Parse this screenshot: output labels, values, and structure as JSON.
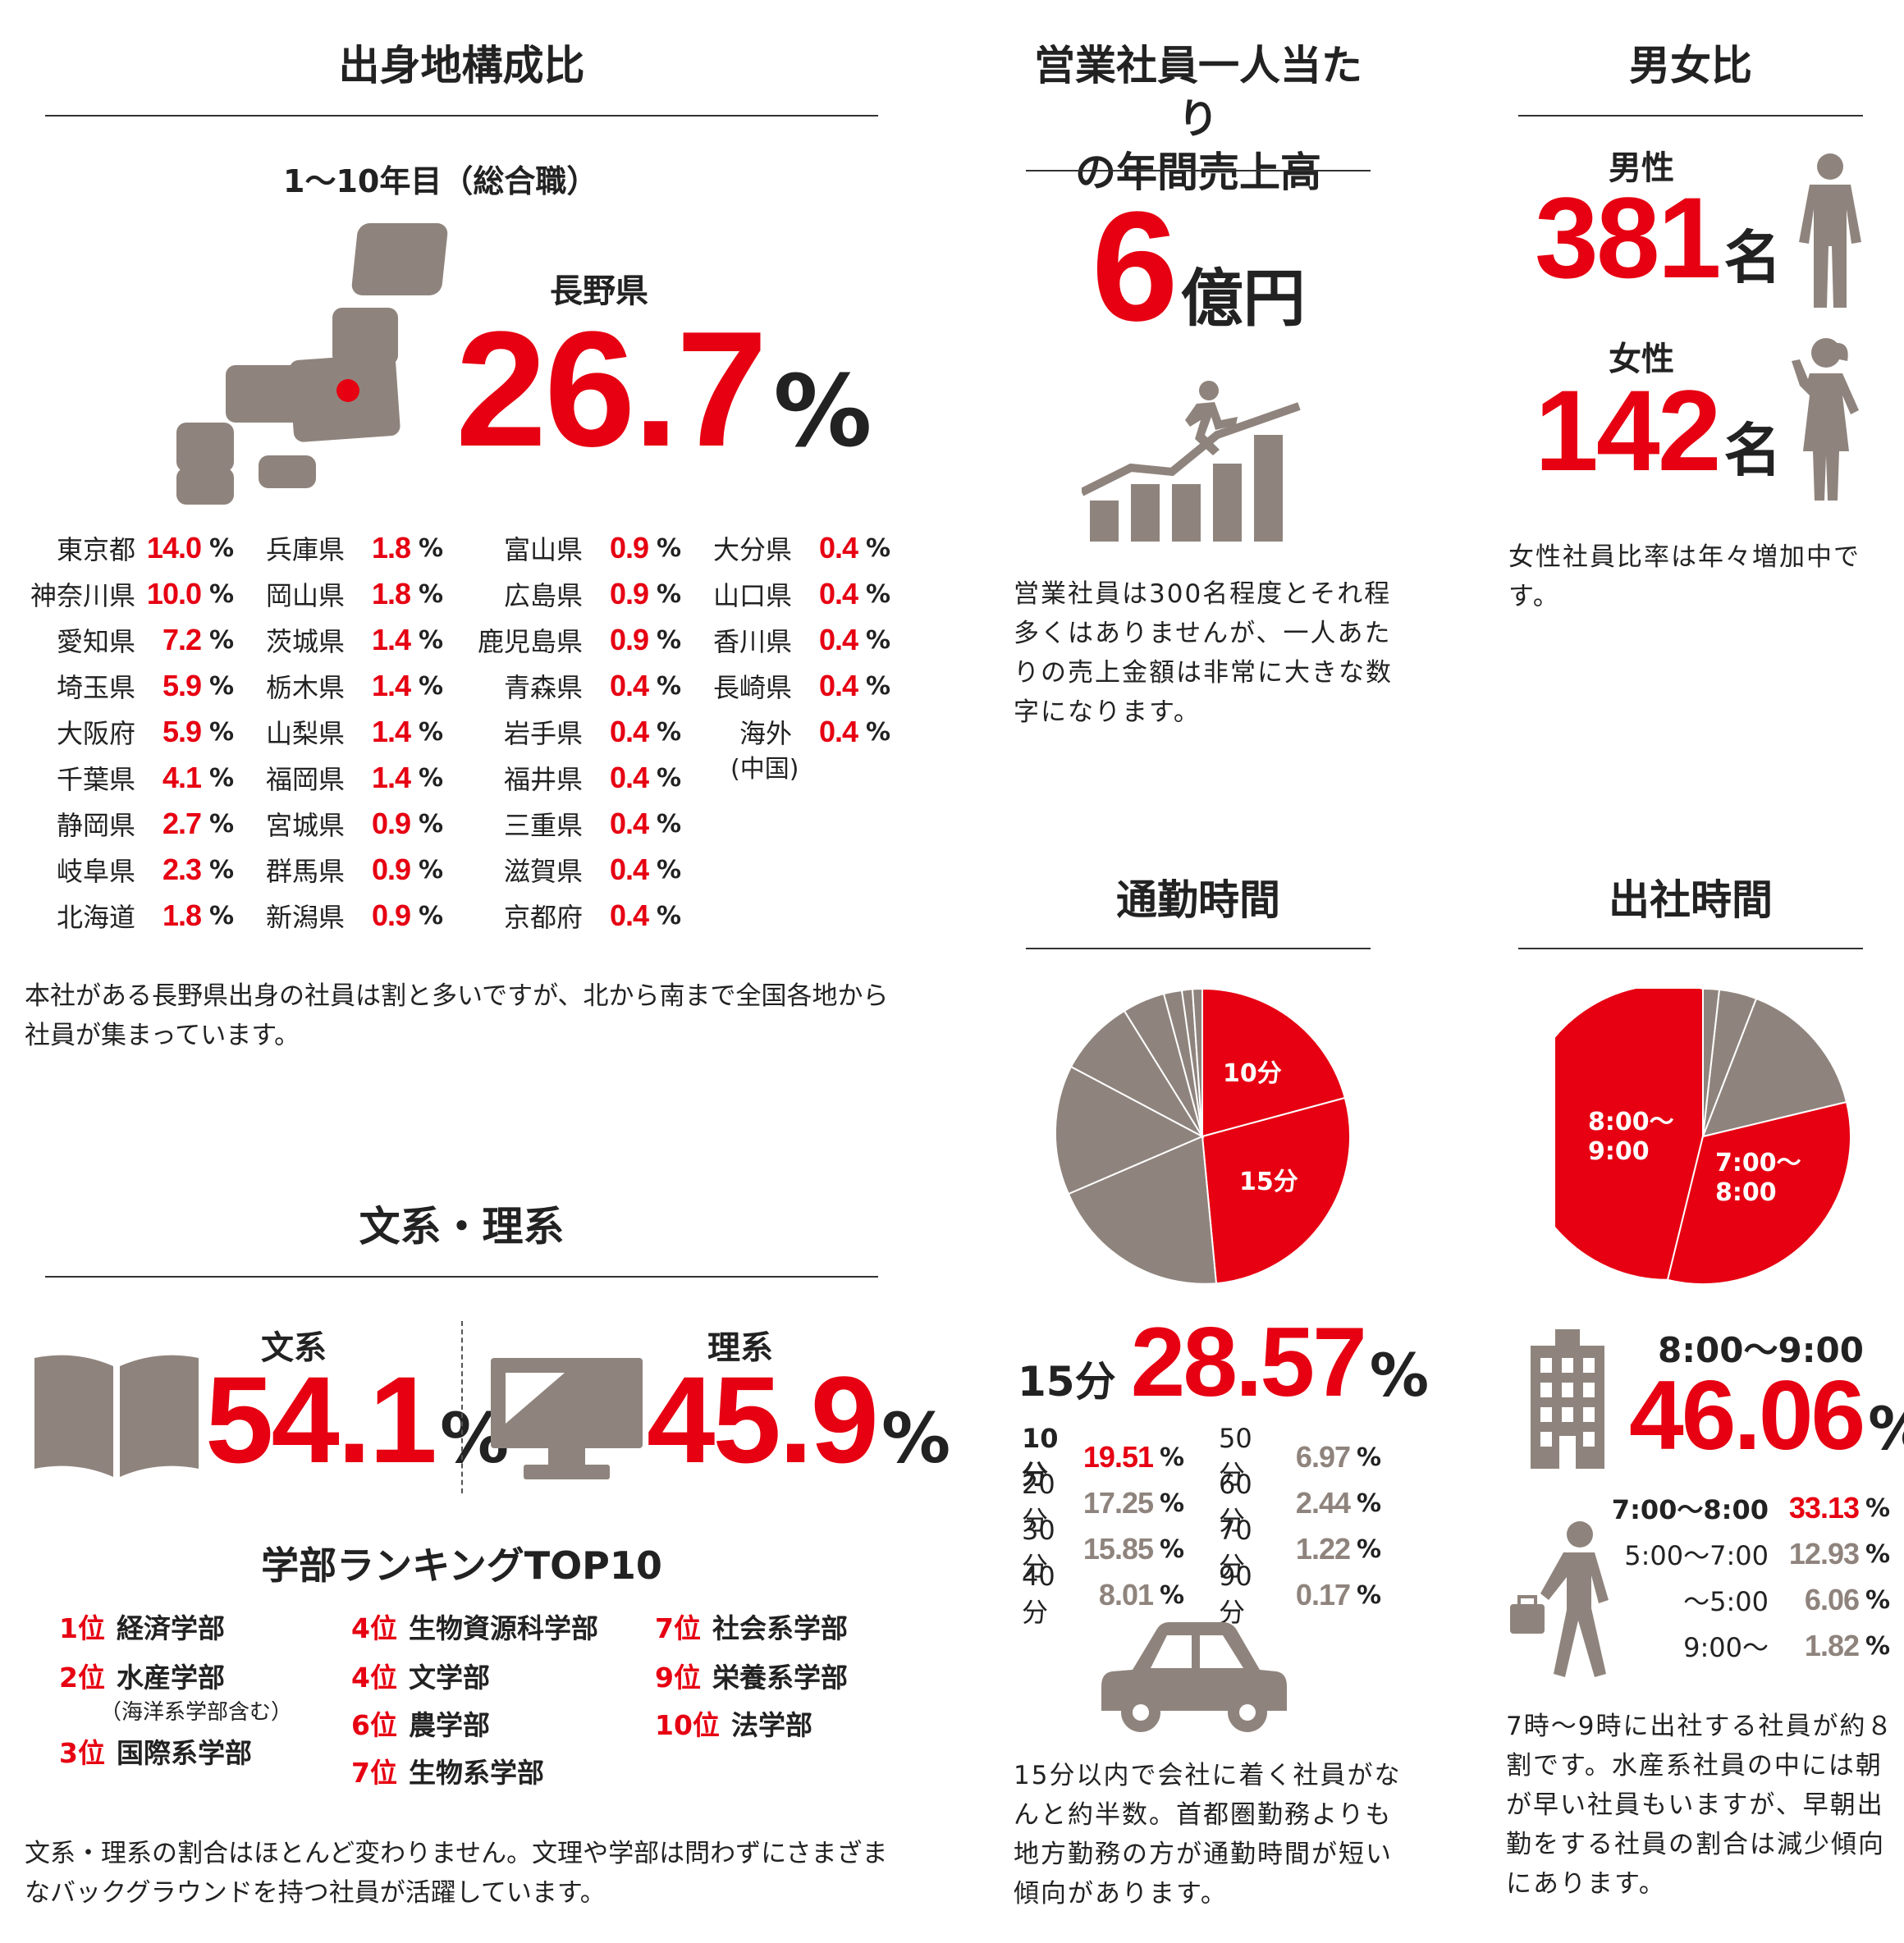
{
  "origin": {
    "title": "出身地構成比",
    "subtitle": "1〜10年目（総合職）",
    "top_label": "長野県",
    "top_value": "26.7",
    "top_unit": "%",
    "columns": [
      [
        [
          "東京都",
          "14.0"
        ],
        [
          "神奈川県",
          "10.0"
        ],
        [
          "愛知県",
          "7.2"
        ],
        [
          "埼玉県",
          "5.9"
        ],
        [
          "大阪府",
          "5.9"
        ],
        [
          "千葉県",
          "4.1"
        ],
        [
          "静岡県",
          "2.7"
        ],
        [
          "岐阜県",
          "2.3"
        ],
        [
          "北海道",
          "1.8"
        ]
      ],
      [
        [
          "兵庫県",
          "1.8"
        ],
        [
          "岡山県",
          "1.8"
        ],
        [
          "茨城県",
          "1.4"
        ],
        [
          "栃木県",
          "1.4"
        ],
        [
          "山梨県",
          "1.4"
        ],
        [
          "福岡県",
          "1.4"
        ],
        [
          "宮城県",
          "0.9"
        ],
        [
          "群馬県",
          "0.9"
        ],
        [
          "新潟県",
          "0.9"
        ]
      ],
      [
        [
          "富山県",
          "0.9"
        ],
        [
          "広島県",
          "0.9"
        ],
        [
          "鹿児島県",
          "0.9"
        ],
        [
          "青森県",
          "0.4"
        ],
        [
          "岩手県",
          "0.4"
        ],
        [
          "福井県",
          "0.4"
        ],
        [
          "三重県",
          "0.4"
        ],
        [
          "滋賀県",
          "0.4"
        ],
        [
          "京都府",
          "0.4"
        ]
      ],
      [
        [
          "大分県",
          "0.4"
        ],
        [
          "山口県",
          "0.4"
        ],
        [
          "香川県",
          "0.4"
        ],
        [
          "長崎県",
          "0.4"
        ],
        [
          "海外",
          "0.4"
        ]
      ]
    ],
    "overseas_note": "(中国)",
    "percent_sign": "%",
    "description_1": "本社がある長野県出身の社員は割と多いですが、北から南まで全国各地から",
    "description_2": "社員が集まっています。"
  },
  "sales": {
    "title_1": "営業社員一人当たり",
    "title_2": "の年間売上高",
    "value": "6",
    "unit": "億円",
    "description": [
      "営業社員は300名程度とそれ程",
      "多くはありませんが、一人あた",
      "りの売上金額は非常に大きな数",
      "字になります。"
    ]
  },
  "gender": {
    "title": "男女比",
    "male_label": "男性",
    "male_value": "381",
    "female_label": "女性",
    "female_value": "142",
    "unit": "名",
    "description": [
      "女性社員比率は年々増加中で",
      "す。"
    ]
  },
  "commute": {
    "title": "通勤時間",
    "highlight_label": "15分",
    "highlight_value": "28.57",
    "percent_sign": "%",
    "pie_labels": [
      "10分",
      "15分"
    ],
    "stats_left": [
      [
        "10分",
        "19.51"
      ],
      [
        "20分",
        "17.25"
      ],
      [
        "30分",
        "15.85"
      ],
      [
        "40分",
        "8.01"
      ]
    ],
    "stats_right": [
      [
        "50分",
        "6.97"
      ],
      [
        "60分",
        "2.44"
      ],
      [
        "70分",
        "1.22"
      ],
      [
        "90分",
        "0.17"
      ]
    ],
    "description": [
      "15分以内で会社に着く社員がな",
      "んと約半数。首都圏勤務よりも",
      "地方勤務の方が通勤時間が短い",
      "傾向があります。"
    ]
  },
  "arrival": {
    "title": "出社時間",
    "highlight_label": "8:00〜9:00",
    "highlight_value": "46.06",
    "percent_sign": "%",
    "pie_label_a": [
      "8:00〜",
      "9:00"
    ],
    "pie_label_b": [
      "7:00〜",
      "8:00"
    ],
    "stats": [
      [
        "7:00〜8:00",
        "33.13"
      ],
      [
        "5:00〜7:00",
        "12.93"
      ],
      [
        "〜5:00",
        "6.06"
      ],
      [
        "9:00〜",
        "1.82"
      ]
    ],
    "description": [
      "7時〜9時に出社する社員が約８",
      "割です。水産系社員の中には朝",
      "が早い社員もいますが、早朝出",
      "勤をする社員の割合は減少傾向",
      "にあります。"
    ]
  },
  "major": {
    "title": "文系・理系",
    "humanities_label": "文系",
    "humanities_value": "54.1",
    "science_label": "理系",
    "science_value": "45.9",
    "percent_sign": "%",
    "ranking_title": "学部ランキングTOP10",
    "ranking": [
      {
        "rank": "1位",
        "name": "経済学部",
        "note": ""
      },
      {
        "rank": "2位",
        "name": "水産学部",
        "note": "（海洋系学部含む）"
      },
      {
        "rank": "3位",
        "name": "国際系学部",
        "note": ""
      },
      {
        "rank": "4位",
        "name": "生物資源科学部",
        "note": ""
      },
      {
        "rank": "4位",
        "name": "文学部",
        "note": ""
      },
      {
        "rank": "6位",
        "name": "農学部",
        "note": ""
      },
      {
        "rank": "7位",
        "name": "生物系学部",
        "note": ""
      },
      {
        "rank": "7位",
        "name": "社会系学部",
        "note": ""
      },
      {
        "rank": "9位",
        "name": "栄養系学部",
        "note": ""
      },
      {
        "rank": "10位",
        "name": "法学部",
        "note": ""
      }
    ],
    "description_1": "文系・理系の割合はほとんど変わりません。文理や学部は問わずにさまざま",
    "description_2": "なバックグラウンドを持つ社員が活躍しています。"
  },
  "colors": {
    "accent": "#e60012",
    "icon": "#8f847d",
    "text": "#222222"
  }
}
